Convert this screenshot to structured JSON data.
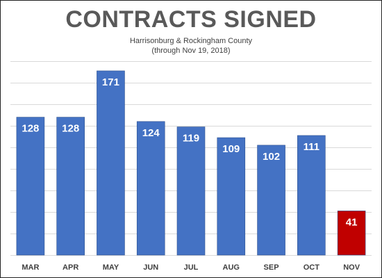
{
  "chart_data": {
    "type": "bar",
    "title": "CONTRACTS SIGNED",
    "subtitle": [
      "Harrisonburg & Rockingham County",
      "(through Nov 19, 2018)"
    ],
    "categories": [
      "MAR",
      "APR",
      "MAY",
      "JUN",
      "JUL",
      "AUG",
      "SEP",
      "OCT",
      "NOV"
    ],
    "values": [
      128,
      128,
      171,
      124,
      119,
      109,
      102,
      111,
      41
    ],
    "ylim": [
      0,
      180
    ],
    "grid": true,
    "data_labels": true,
    "colors": {
      "bar": "#4472C4",
      "highlight": "#C00000",
      "grid": "#D9D9D9"
    },
    "highlight_category": "NOV"
  }
}
